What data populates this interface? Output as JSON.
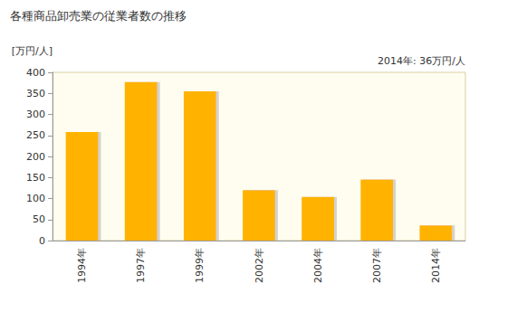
{
  "chart_data": {
    "type": "bar",
    "title": "各種商品卸売業の従業者数の推移",
    "y_label": "[万円/人]",
    "annotation": "2014年: 36万円/人",
    "categories": [
      "1994年",
      "1997年",
      "1999年",
      "2002年",
      "2004年",
      "2007年",
      "2014年"
    ],
    "values": [
      258,
      377,
      355,
      120,
      104,
      145,
      36
    ],
    "color": "#ffb300",
    "ylim": [
      0,
      400
    ],
    "yticks": [
      0,
      50,
      100,
      150,
      200,
      250,
      300,
      350,
      400
    ],
    "grid": false
  }
}
